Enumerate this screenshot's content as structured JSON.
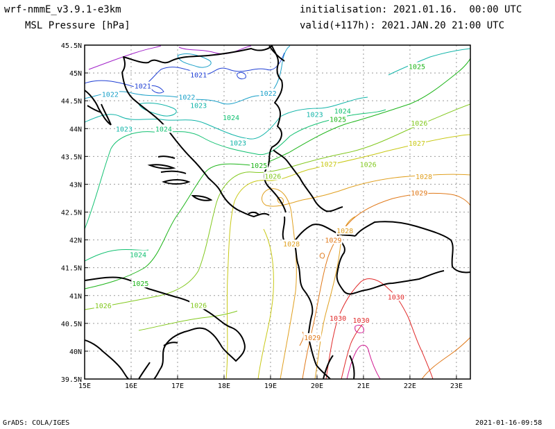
{
  "header": {
    "model": "wrf-nmmE_v3.9.1-e3km",
    "variable": "MSL Pressure [hPa]",
    "initialisation": "initialisation: 2021.01.16.  00:00 UTC",
    "valid": "valid(+117h): 2021.JAN.20 21:00 UTC"
  },
  "axes": {
    "x_ticks": [
      "15E",
      "16E",
      "17E",
      "18E",
      "19E",
      "20E",
      "21E",
      "22E",
      "23E"
    ],
    "y_ticks": [
      "45.5N",
      "45N",
      "44.5N",
      "44N",
      "43.5N",
      "43N",
      "42.5N",
      "42N",
      "41.5N",
      "41N",
      "40.5N",
      "40N",
      "39.5N"
    ],
    "lon_range": [
      15,
      23.3
    ],
    "lat_range": [
      39.5,
      45.5
    ]
  },
  "contour_labels": [
    {
      "text": "1021",
      "lon": 16.25,
      "lat": 44.77,
      "color": "#1f3fd4"
    },
    {
      "text": "1021",
      "lon": 17.45,
      "lat": 44.97,
      "color": "#1f3fd4"
    },
    {
      "text": "1022",
      "lon": 15.55,
      "lat": 44.62,
      "color": "#1aa0c8"
    },
    {
      "text": "1022",
      "lon": 17.2,
      "lat": 44.57,
      "color": "#1aa0c8"
    },
    {
      "text": "1022",
      "lon": 18.95,
      "lat": 44.64,
      "color": "#1aa0c8"
    },
    {
      "text": "1023",
      "lon": 17.45,
      "lat": 44.42,
      "color": "#10b4a8"
    },
    {
      "text": "1023",
      "lon": 15.85,
      "lat": 44.0,
      "color": "#10b4a8"
    },
    {
      "text": "1023",
      "lon": 18.3,
      "lat": 43.75,
      "color": "#10b4a8"
    },
    {
      "text": "1023",
      "lon": 19.95,
      "lat": 44.26,
      "color": "#10b4a8"
    },
    {
      "text": "1024",
      "lon": 18.15,
      "lat": 44.2,
      "color": "#10c070"
    },
    {
      "text": "1024",
      "lon": 16.7,
      "lat": 44.0,
      "color": "#10c070"
    },
    {
      "text": "1024",
      "lon": 20.55,
      "lat": 44.32,
      "color": "#10c070"
    },
    {
      "text": "1024",
      "lon": 16.15,
      "lat": 41.74,
      "color": "#10c070"
    },
    {
      "text": "1025",
      "lon": 20.45,
      "lat": 44.17,
      "color": "#1cb418"
    },
    {
      "text": "1025",
      "lon": 22.15,
      "lat": 45.12,
      "color": "#1cb418"
    },
    {
      "text": "1025",
      "lon": 18.75,
      "lat": 43.34,
      "color": "#1cb418"
    },
    {
      "text": "1025",
      "lon": 16.2,
      "lat": 41.22,
      "color": "#1cb418"
    },
    {
      "text": "1026",
      "lon": 22.2,
      "lat": 44.1,
      "color": "#82c81e"
    },
    {
      "text": "1026",
      "lon": 21.1,
      "lat": 43.36,
      "color": "#82c81e"
    },
    {
      "text": "1026",
      "lon": 19.05,
      "lat": 43.15,
      "color": "#82c81e"
    },
    {
      "text": "1026",
      "lon": 15.4,
      "lat": 40.82,
      "color": "#82c81e"
    },
    {
      "text": "1026",
      "lon": 17.45,
      "lat": 40.83,
      "color": "#82c81e"
    },
    {
      "text": "1027",
      "lon": 22.15,
      "lat": 43.74,
      "color": "#c8c814"
    },
    {
      "text": "1027",
      "lon": 20.25,
      "lat": 43.37,
      "color": "#c8c814"
    },
    {
      "text": "1028",
      "lon": 22.3,
      "lat": 43.14,
      "color": "#e0a020"
    },
    {
      "text": "1028",
      "lon": 20.6,
      "lat": 42.17,
      "color": "#e0a020"
    },
    {
      "text": "1028",
      "lon": 19.45,
      "lat": 41.93,
      "color": "#e0a020"
    },
    {
      "text": "1029",
      "lon": 22.2,
      "lat": 42.85,
      "color": "#e07818"
    },
    {
      "text": "1029",
      "lon": 20.35,
      "lat": 42.0,
      "color": "#e07818"
    },
    {
      "text": "1029",
      "lon": 19.9,
      "lat": 40.25,
      "color": "#e07818"
    },
    {
      "text": "1030",
      "lon": 21.7,
      "lat": 40.98,
      "color": "#e02828"
    },
    {
      "text": "1030",
      "lon": 20.45,
      "lat": 40.6,
      "color": "#e02828"
    },
    {
      "text": "1030",
      "lon": 20.95,
      "lat": 40.56,
      "color": "#e02828"
    }
  ],
  "footer": {
    "left": "GrADS: COLA/IGES",
    "right": "2021-01-16-09:58"
  }
}
